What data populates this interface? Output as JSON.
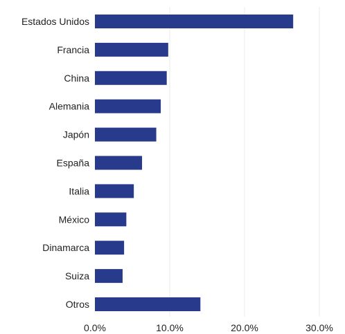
{
  "chart_data": {
    "type": "bar",
    "orientation": "horizontal",
    "title": "",
    "xlabel": "",
    "ylabel": "",
    "categories": [
      "Estados Unidos",
      "Francia",
      "China",
      "Alemania",
      "Japón",
      "España",
      "Italia",
      "México",
      "Dinamarca",
      "Suiza",
      "Otros"
    ],
    "series": [
      {
        "values": [
          26.5,
          9.8,
          9.6,
          8.8,
          8.2,
          6.3,
          5.2,
          4.2,
          3.9,
          3.7,
          14.1
        ],
        "color": "#283a8c"
      }
    ],
    "xlim": [
      0,
      30
    ],
    "xticks": [
      0,
      10,
      20,
      30
    ],
    "xtick_labels": [
      "0.0%",
      "10.0%",
      "20.0%",
      "30.0%"
    ],
    "grid": "vertical",
    "legend": "none",
    "colors": {
      "bar": "#283a8c",
      "grid": "#ebebeb",
      "text": "#222222",
      "background": "#ffffff"
    }
  }
}
